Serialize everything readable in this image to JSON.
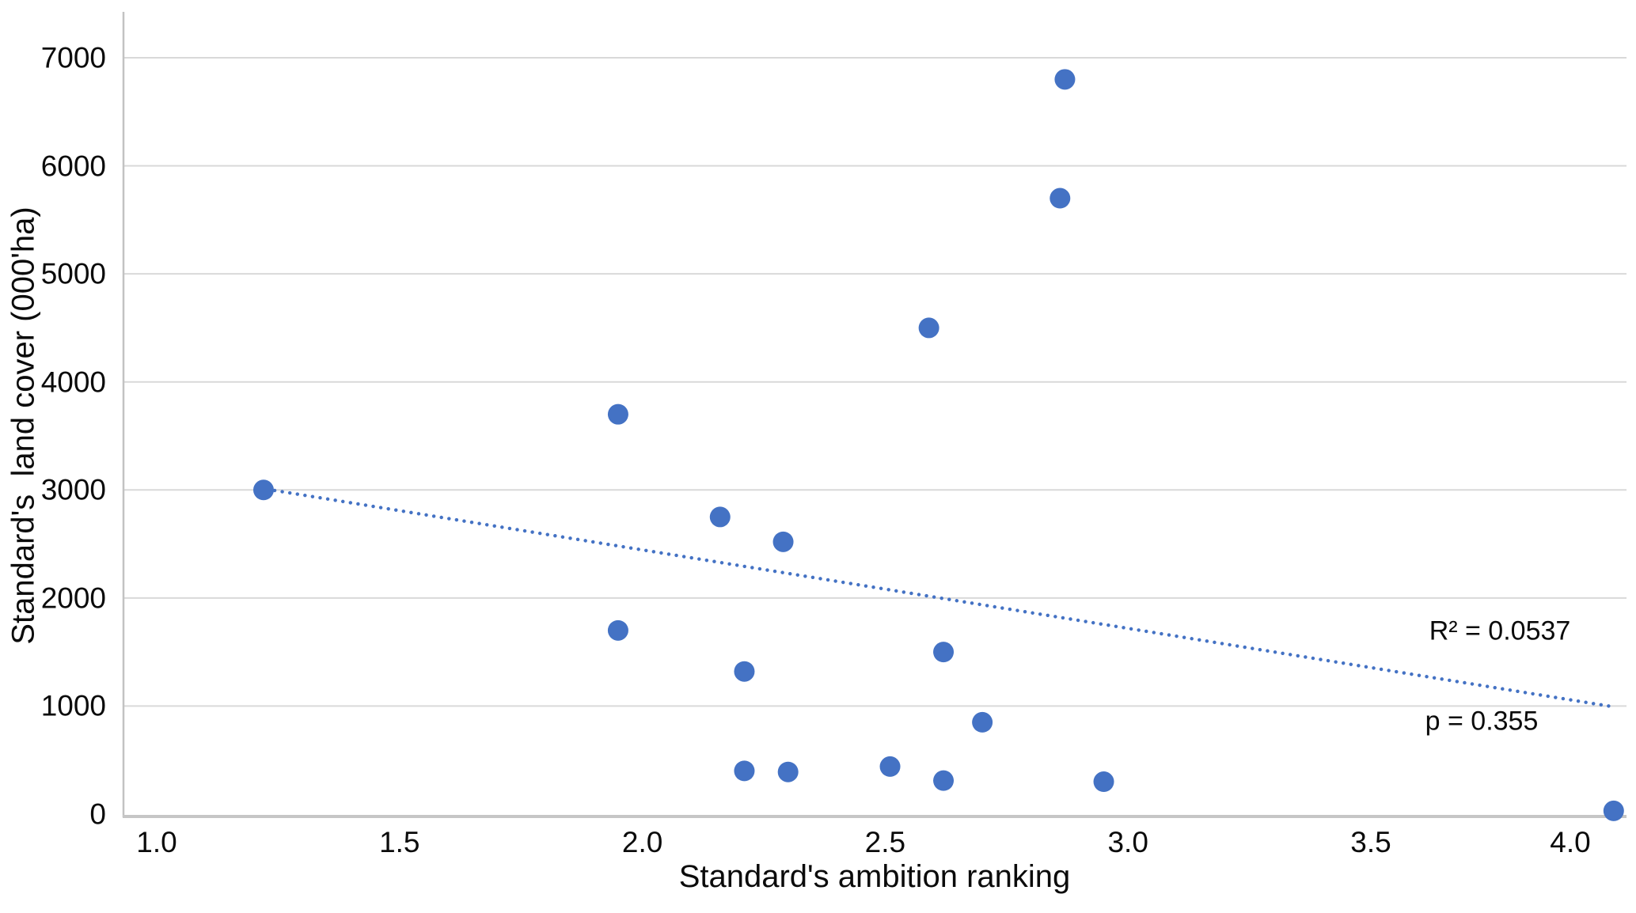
{
  "chart_data": {
    "type": "scatter",
    "title": "",
    "xlabel": "Standard's ambition ranking",
    "ylabel": "Standard's  land cover (000'ha)",
    "xlim": [
      0.93,
      4.03
    ],
    "ylim": [
      0,
      7400
    ],
    "grid": "horizontal",
    "legend": "none",
    "point_color": "#4472C4",
    "trendline_color": "#4472C4",
    "gridline_color": "#d9d9d9",
    "axis_line_color": "#c6c6c6",
    "x_ticks": {
      "values": [
        1.0,
        1.5,
        2.0,
        2.5,
        3.0,
        3.5,
        4.0
      ],
      "labels": [
        "1.0",
        "1.5",
        "2.0",
        "2.5",
        "3.0",
        "3.5",
        "4.0"
      ]
    },
    "y_ticks": {
      "values": [
        0,
        1000,
        2000,
        3000,
        4000,
        5000,
        6000,
        7000
      ],
      "labels": [
        "0",
        "1000",
        "2000",
        "3000",
        "4000",
        "5000",
        "6000",
        "7000"
      ]
    },
    "points": [
      {
        "x": 1.22,
        "y": 3000
      },
      {
        "x": 1.95,
        "y": 3700
      },
      {
        "x": 1.95,
        "y": 1700
      },
      {
        "x": 2.16,
        "y": 2750
      },
      {
        "x": 2.21,
        "y": 1320
      },
      {
        "x": 2.21,
        "y": 400
      },
      {
        "x": 2.29,
        "y": 2520
      },
      {
        "x": 2.3,
        "y": 390
      },
      {
        "x": 2.51,
        "y": 440
      },
      {
        "x": 2.59,
        "y": 4500
      },
      {
        "x": 2.62,
        "y": 1500
      },
      {
        "x": 2.62,
        "y": 310
      },
      {
        "x": 2.7,
        "y": 850
      },
      {
        "x": 2.86,
        "y": 5700
      },
      {
        "x": 2.87,
        "y": 6800
      },
      {
        "x": 2.95,
        "y": 300
      },
      {
        "x": 4.0,
        "y": 30
      }
    ],
    "trendline": {
      "style": "dotted",
      "x1": 1.22,
      "y1": 3010,
      "x2": 3.99,
      "y2": 1000
    },
    "annotations": {
      "r_squared": "R² = 0.0537",
      "p_value": "p = 0.355"
    }
  }
}
